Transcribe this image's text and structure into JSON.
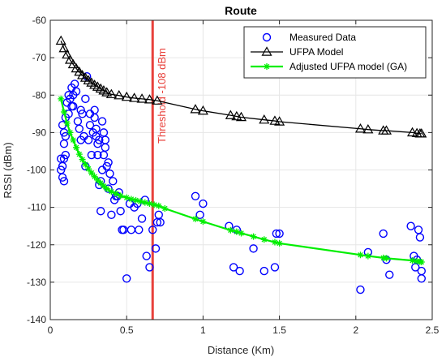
{
  "chart_data": {
    "type": "scatter",
    "title": "Route",
    "xlabel": "Distance (Km)",
    "ylabel": "RSSI (dBm)",
    "xlim": [
      0,
      2.5
    ],
    "ylim": [
      -140,
      -60
    ],
    "xticks": [
      0,
      0.5,
      1,
      1.5,
      2,
      2.5
    ],
    "xtick_labels": [
      "0",
      "0.5",
      "1",
      "1.5",
      "2",
      "2.5"
    ],
    "yticks": [
      -140,
      -130,
      -120,
      -110,
      -100,
      -90,
      -80,
      -70,
      -60
    ],
    "ytick_labels": [
      "-140",
      "-130",
      "-120",
      "-110",
      "-100",
      "-90",
      "-80",
      "-70",
      "-60"
    ],
    "grid": true,
    "legend_position": "top-right",
    "threshold": {
      "x": 0.67,
      "label": "Threshold -108 dBm",
      "color": "#e8413b"
    },
    "series": [
      {
        "name": "Measured Data",
        "kind": "scatter",
        "marker": "circle",
        "color": "#0000ff",
        "x": [
          0.07,
          0.07,
          0.08,
          0.08,
          0.08,
          0.09,
          0.09,
          0.09,
          0.09,
          0.1,
          0.1,
          0.1,
          0.11,
          0.12,
          0.12,
          0.13,
          0.14,
          0.14,
          0.15,
          0.15,
          0.16,
          0.17,
          0.18,
          0.19,
          0.2,
          0.2,
          0.21,
          0.22,
          0.23,
          0.23,
          0.24,
          0.25,
          0.26,
          0.26,
          0.27,
          0.28,
          0.29,
          0.29,
          0.3,
          0.3,
          0.31,
          0.31,
          0.32,
          0.32,
          0.33,
          0.33,
          0.34,
          0.34,
          0.35,
          0.35,
          0.36,
          0.36,
          0.37,
          0.38,
          0.38,
          0.39,
          0.4,
          0.41,
          0.42,
          0.43,
          0.44,
          0.45,
          0.46,
          0.47,
          0.48,
          0.5,
          0.52,
          0.53,
          0.55,
          0.57,
          0.58,
          0.6,
          0.62,
          0.63,
          0.65,
          0.67,
          0.69,
          0.7,
          0.71,
          0.72,
          0.95,
          0.98,
          1.0,
          1.17,
          1.2,
          1.22,
          1.24,
          1.33,
          1.4,
          1.47,
          1.48,
          1.5,
          2.03,
          2.08,
          2.18,
          2.2,
          2.22,
          2.36,
          2.38,
          2.39,
          2.4,
          2.41,
          2.42,
          2.43,
          2.43
        ],
        "y": [
          -97,
          -100,
          -88,
          -102,
          -99,
          -90,
          -93,
          -97,
          -103,
          -86,
          -91,
          -96,
          -82,
          -80,
          -85,
          -81,
          -83,
          -78,
          -80,
          -83,
          -77,
          -79,
          -87,
          -89,
          -84,
          -92,
          -85,
          -91,
          -99,
          -81,
          -75,
          -92,
          -88,
          -85,
          -96,
          -90,
          -86,
          -84,
          -91,
          -89,
          -96,
          -93,
          -92,
          -104,
          -111,
          -103,
          -87,
          -100,
          -90,
          -96,
          -94,
          -92,
          -99,
          -105,
          -98,
          -101,
          -112,
          -103,
          -108,
          -107,
          -107,
          -106,
          -111,
          -116,
          -116,
          -129,
          -109,
          -116,
          -110,
          -109,
          -116,
          -113,
          -108,
          -123,
          -126,
          -116,
          -121,
          -114,
          -112,
          -114,
          -107,
          -112,
          -109,
          -115,
          -126,
          -116,
          -127,
          -121,
          -127,
          -126,
          -117,
          -117,
          -132,
          -122,
          -117,
          -124,
          -128,
          -115,
          -123,
          -126,
          -124,
          -116,
          -118,
          -129,
          -127
        ]
      },
      {
        "name": "UFPA Model",
        "kind": "line",
        "marker": "triangle",
        "color": "#000000",
        "x": [
          0.07,
          0.09,
          0.11,
          0.13,
          0.15,
          0.17,
          0.19,
          0.21,
          0.23,
          0.25,
          0.27,
          0.29,
          0.31,
          0.33,
          0.35,
          0.37,
          0.4,
          0.45,
          0.5,
          0.55,
          0.6,
          0.65,
          0.7,
          0.95,
          1.0,
          1.18,
          1.22,
          1.25,
          1.4,
          1.47,
          1.5,
          2.03,
          2.08,
          2.18,
          2.2,
          2.37,
          2.4,
          2.42,
          2.43
        ],
        "y": [
          -65.5,
          -67.5,
          -69.2,
          -70.6,
          -71.8,
          -72.9,
          -73.8,
          -74.7,
          -75.4,
          -76.1,
          -76.7,
          -77.3,
          -77.8,
          -78.3,
          -78.8,
          -79.3,
          -79.8,
          -80.1,
          -80.5,
          -80.8,
          -81.0,
          -81.2,
          -81.5,
          -83.8,
          -84.2,
          -85.4,
          -85.7,
          -85.9,
          -86.6,
          -86.9,
          -87.1,
          -89.0,
          -89.2,
          -89.5,
          -89.5,
          -90.0,
          -90.2,
          -90.3,
          -90.3
        ]
      },
      {
        "name": "Adjusted UFPA model (GA)",
        "kind": "line",
        "marker": "star",
        "color": "#00ee00",
        "x": [
          0.07,
          0.09,
          0.11,
          0.13,
          0.15,
          0.17,
          0.19,
          0.21,
          0.23,
          0.25,
          0.27,
          0.29,
          0.31,
          0.33,
          0.35,
          0.37,
          0.4,
          0.43,
          0.46,
          0.5,
          0.53,
          0.56,
          0.59,
          0.62,
          0.65,
          0.68,
          0.71,
          0.75,
          0.95,
          1.0,
          1.18,
          1.22,
          1.25,
          1.33,
          1.4,
          1.47,
          1.5,
          2.03,
          2.08,
          2.18,
          2.2,
          2.37,
          2.4,
          2.42,
          2.43
        ],
        "y": [
          -81,
          -84.5,
          -87.5,
          -90,
          -92,
          -94,
          -95.8,
          -97.2,
          -98.5,
          -99.7,
          -100.8,
          -101.8,
          -102.7,
          -103.5,
          -104.3,
          -105.0,
          -105.8,
          -106.3,
          -106.9,
          -107.4,
          -107.8,
          -108.1,
          -108.4,
          -108.7,
          -109.0,
          -109.3,
          -109.6,
          -110.3,
          -113.1,
          -113.8,
          -116.1,
          -116.5,
          -116.9,
          -117.8,
          -118.6,
          -119.3,
          -119.6,
          -122.7,
          -123.0,
          -123.5,
          -123.6,
          -124.2,
          -124.4,
          -124.5,
          -124.6
        ]
      }
    ]
  }
}
